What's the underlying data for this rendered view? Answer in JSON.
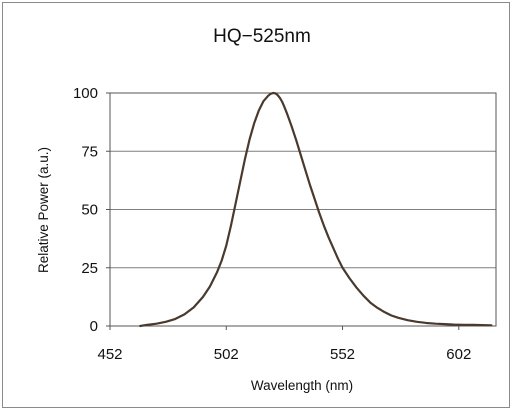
{
  "chart_data": {
    "type": "line",
    "title": "HQ−525nm",
    "xlabel": "Wavelength (nm)",
    "ylabel": "Relative Power (a.u.)",
    "xlim": [
      452,
      618
    ],
    "ylim": [
      0,
      100
    ],
    "x_ticks": [
      452,
      502,
      552,
      602
    ],
    "y_ticks": [
      0,
      25,
      50,
      75,
      100
    ],
    "grid": "horizontal",
    "colors": {
      "line": "#4a3a2e",
      "grid": "#7f7f7f",
      "frame": "#8a8a8a",
      "axis": "#555555"
    },
    "series": [
      {
        "x": [
          465,
          468,
          472,
          476,
          480,
          484,
          488,
          492,
          495,
          498,
          500,
          502,
          504,
          506,
          508,
          510,
          512,
          514,
          516,
          518,
          520,
          521,
          522,
          523,
          524,
          525,
          526,
          527,
          528,
          530,
          532,
          534,
          536,
          538,
          540,
          542,
          544,
          546,
          548,
          550,
          552,
          555,
          558,
          561,
          564,
          567,
          570,
          573,
          576,
          580,
          584,
          588,
          592,
          596,
          600,
          604,
          608,
          612,
          616
        ],
        "y": [
          0,
          0.5,
          1,
          1.8,
          3,
          5,
          8,
          12.5,
          17,
          23,
          28,
          34.5,
          43,
          52.5,
          62,
          71.5,
          80,
          87,
          92.5,
          96.5,
          98.8,
          99.6,
          100,
          99.9,
          99.2,
          98,
          96.3,
          94,
          91.5,
          86,
          80,
          73.5,
          67,
          60.5,
          54.5,
          48.5,
          43,
          38,
          33.5,
          29,
          25,
          20.5,
          16.5,
          13,
          10,
          7.8,
          6,
          4.5,
          3.5,
          2.5,
          1.8,
          1.3,
          1,
          0.8,
          0.6,
          0.5,
          0.5,
          0.4,
          0.3
        ]
      }
    ]
  }
}
